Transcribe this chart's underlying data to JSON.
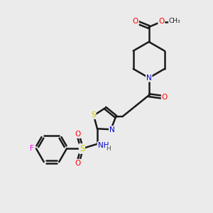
{
  "bg_color": "#ebebeb",
  "bond_color": "#1a1a1a",
  "atom_colors": {
    "O": "#ff0000",
    "N": "#0000cc",
    "S": "#cccc00",
    "F": "#ff00ff",
    "C": "#1a1a1a",
    "H": "#555555"
  }
}
